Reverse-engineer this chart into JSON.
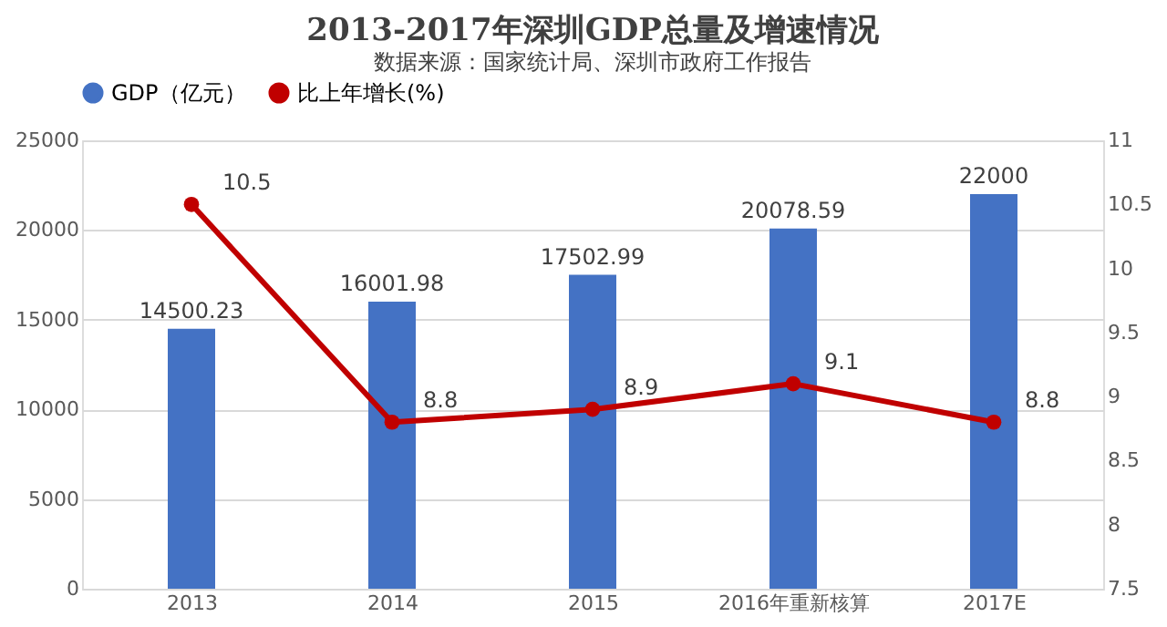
{
  "chart_data": {
    "type": "bar",
    "title": "2013-2017年深圳GDP总量及增速情况",
    "subtitle": "数据来源：国家统计局、深圳市政府工作报告",
    "categories": [
      "2013",
      "2014",
      "2015",
      "2016年重新核算",
      "2017E"
    ],
    "series": [
      {
        "name": "GDP（亿元）",
        "color": "#4472c4",
        "values": [
          14500.23,
          16001.98,
          17502.99,
          20078.59,
          22000
        ]
      },
      {
        "name": "比上年增长(%)",
        "type": "line",
        "axis": "y2",
        "color": "#c00000",
        "marker": "circle",
        "values": [
          10.5,
          8.8,
          8.9,
          9.1,
          8.8
        ]
      }
    ],
    "ylim": [
      0,
      25000
    ],
    "yticks": [
      0,
      5000,
      10000,
      15000,
      20000,
      25000
    ],
    "y2lim": [
      7.5,
      11
    ],
    "y2ticks": [
      7.5,
      8,
      8.5,
      9,
      9.5,
      10,
      10.5,
      11
    ],
    "grid": "y",
    "legend": "top",
    "data_labels": true
  }
}
